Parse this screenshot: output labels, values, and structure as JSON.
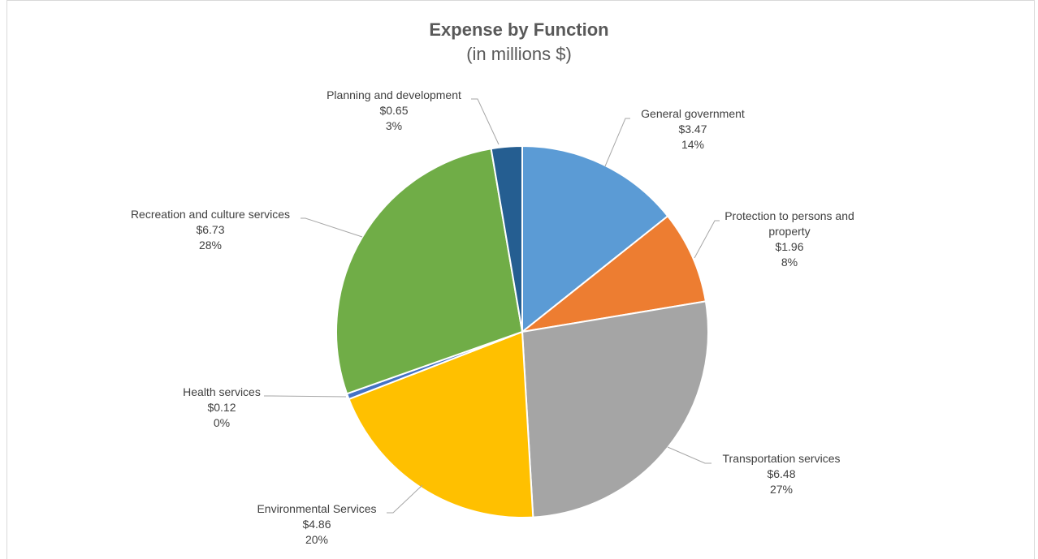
{
  "chart_data": {
    "type": "pie",
    "title": [
      "Expense by Function",
      "(in millions $)"
    ],
    "slices": [
      {
        "name": "General government",
        "label_lines": [
          "General government"
        ],
        "value": 3.47,
        "value_label": "$3.47",
        "percent_label": "14%",
        "color": "#5b9bd5"
      },
      {
        "name": "Protection to persons and property",
        "label_lines": [
          "Protection to persons and",
          "property"
        ],
        "value": 1.96,
        "value_label": "$1.96",
        "percent_label": "8%",
        "color": "#ed7d31"
      },
      {
        "name": "Transportation services",
        "label_lines": [
          "Transportation services"
        ],
        "value": 6.48,
        "value_label": "$6.48",
        "percent_label": "27%",
        "color": "#a5a5a5"
      },
      {
        "name": "Environmental Services",
        "label_lines": [
          "Environmental Services"
        ],
        "value": 4.86,
        "value_label": "$4.86",
        "percent_label": "20%",
        "color": "#ffc000"
      },
      {
        "name": "Health services",
        "label_lines": [
          "Health services"
        ],
        "value": 0.12,
        "value_label": "$0.12",
        "percent_label": "0%",
        "color": "#4472c4"
      },
      {
        "name": "Recreation and culture services",
        "label_lines": [
          "Recreation and culture services"
        ],
        "value": 6.73,
        "value_label": "$6.73",
        "percent_label": "28%",
        "color": "#70ad47"
      },
      {
        "name": "Planning and development",
        "label_lines": [
          "Planning and development"
        ],
        "value": 0.65,
        "value_label": "$0.65",
        "percent_label": "3%",
        "color": "#255e91"
      }
    ],
    "legend": "none"
  }
}
